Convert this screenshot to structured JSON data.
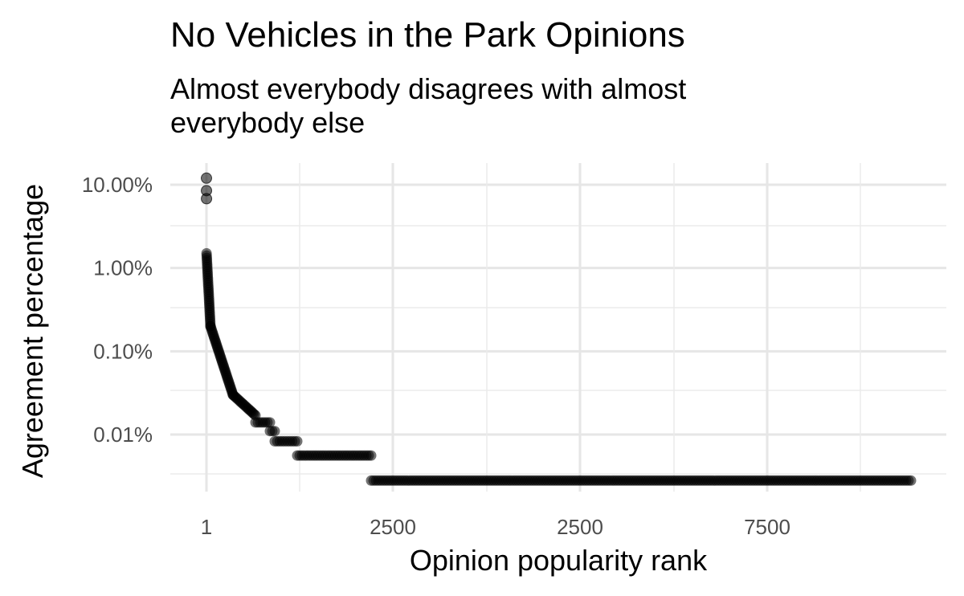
{
  "chart_data": {
    "type": "scatter",
    "title": "No Vehicles in the Park Opinions",
    "subtitle_lines": [
      "Almost everybody disagrees with almost",
      "everybody else"
    ],
    "xlabel": "Opinion popularity rank",
    "ylabel": "Agreement percentage",
    "y_scale": "log10",
    "ylim_percent": [
      0.0025,
      14
    ],
    "y_ticks": [
      {
        "value": 10,
        "label": "10.00%"
      },
      {
        "value": 1,
        "label": "1.00%"
      },
      {
        "value": 0.1,
        "label": "0.10%"
      },
      {
        "value": 0.01,
        "label": "0.01%"
      }
    ],
    "x_ticks": [
      "1",
      "2500",
      "2500",
      "7500"
    ],
    "grid": true,
    "series": [
      {
        "name": "opinions",
        "segments": [
          {
            "rank": 1,
            "pct": 12.0
          },
          {
            "rank": 2,
            "pct": 8.5
          },
          {
            "rank": 3,
            "pct": 6.8
          },
          {
            "rank_range": [
              4,
              150
            ],
            "pct_from": 1.5,
            "pct_to": 0.2
          },
          {
            "rank_range": [
              150,
              500
            ],
            "pct_from": 0.2,
            "pct_to": 0.03
          },
          {
            "rank_range": [
              500,
              700
            ],
            "pct_from": 0.03,
            "pct_to": 0.017
          },
          {
            "rank_range": [
              700,
              950
            ],
            "pct": 0.014
          },
          {
            "rank_range": [
              950,
              1100
            ],
            "pct": 0.011
          },
          {
            "rank_range": [
              1100,
              1450
            ],
            "pct": 0.0083
          },
          {
            "rank_range": [
              1450,
              2200
            ],
            "pct": 0.0056
          },
          {
            "rank_range": [
              2200,
              9500
            ],
            "pct": 0.0028
          }
        ]
      }
    ]
  }
}
